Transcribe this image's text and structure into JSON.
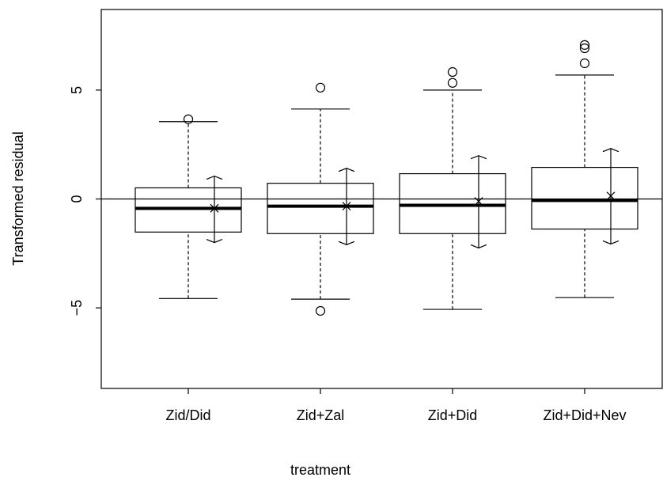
{
  "chart_data": {
    "type": "box",
    "x_label": "treatment",
    "y_label": "Transformed residual",
    "categories": [
      "Zid/Did",
      "Zid+Zal",
      "Zid+Did",
      "Zid+Did+Nev"
    ],
    "ylim": [
      -8.7,
      8.7
    ],
    "yticks": [
      {
        "value": -5,
        "label": "−5"
      },
      0,
      5
    ],
    "reference_line": 0,
    "series": [
      {
        "whisker_low": -4.57,
        "q1": -1.52,
        "median": -0.43,
        "q3": 0.51,
        "whisker_high": 3.55,
        "outliers": [
          3.66
        ],
        "mean": -0.43,
        "ci_low": -2.0,
        "ci_high": 1.05
      },
      {
        "whisker_low": -4.6,
        "q1": -1.59,
        "median": -0.33,
        "q3": 0.72,
        "whisker_high": 4.13,
        "outliers": [
          5.11,
          -5.14
        ],
        "mean": -0.33,
        "ci_low": -2.1,
        "ci_high": 1.41
      },
      {
        "whisker_low": -5.07,
        "q1": -1.59,
        "median": -0.29,
        "q3": 1.16,
        "whisker_high": 5.0,
        "outliers": [
          5.83,
          5.33
        ],
        "mean": -0.11,
        "ci_low": -2.25,
        "ci_high": 1.99
      },
      {
        "whisker_low": -4.53,
        "q1": -1.38,
        "median": -0.07,
        "q3": 1.45,
        "whisker_high": 5.69,
        "outliers": [
          7.07,
          6.92,
          6.23
        ],
        "mean": 0.14,
        "ci_low": -2.07,
        "ci_high": 2.32
      }
    ]
  }
}
